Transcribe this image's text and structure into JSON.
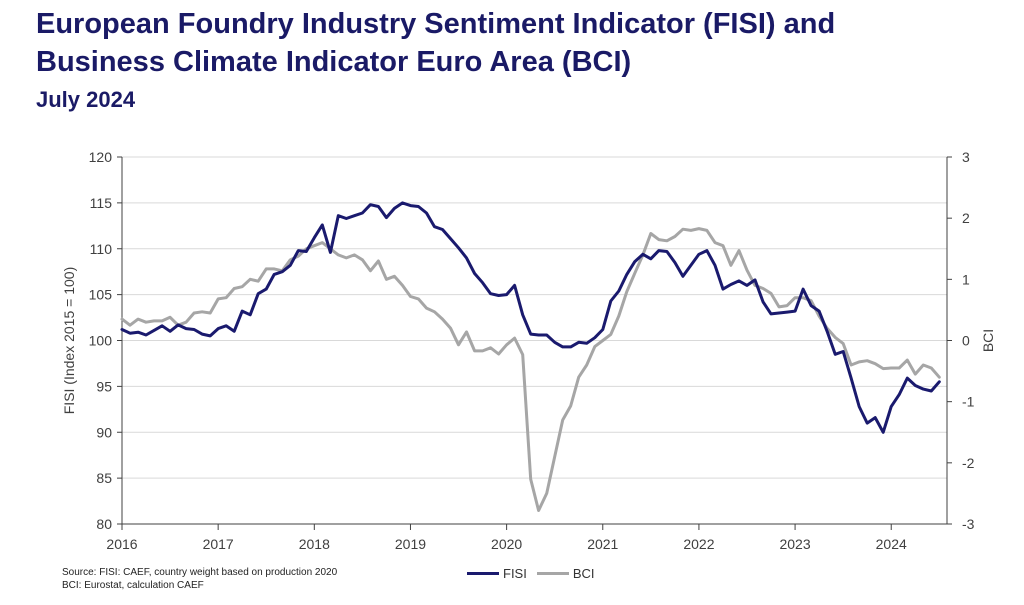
{
  "title_line1": "European Foundry Industry Sentiment Indicator (FISI) and",
  "title_line2": "Business Climate Indicator Euro Area (BCI)",
  "subtitle": "July 2024",
  "source_line1": "Source: FISI: CAEF, country weight based on production 2020",
  "source_line2": "BCI: Eurostat, calculation CAEF",
  "colors": {
    "fisi": "#1a1a6e",
    "bci": "#a6a6a6",
    "axis": "#404040",
    "grid": "#d9d9d9"
  },
  "chart_data": {
    "type": "line",
    "xlim": [
      2016,
      2024.58
    ],
    "x_ticks": [
      "2016",
      "2017",
      "2018",
      "2019",
      "2020",
      "2021",
      "2022",
      "2023",
      "2024"
    ],
    "left_axis": {
      "label": "FISI (Index 2015 = 100)",
      "ylim": [
        80,
        120
      ],
      "ticks": [
        "80",
        "85",
        "90",
        "95",
        "100",
        "105",
        "110",
        "115",
        "120"
      ]
    },
    "right_axis": {
      "label": "BCI",
      "ylim": [
        -3,
        3
      ],
      "ticks": [
        "-3",
        "-2",
        "-1",
        "0",
        "1",
        "2",
        "3"
      ]
    },
    "grid": true,
    "legend_position": "bottom",
    "series": [
      {
        "name": "FISI",
        "axis": "left",
        "x": [
          2016.0,
          2016.083,
          2016.167,
          2016.25,
          2016.333,
          2016.417,
          2016.5,
          2016.583,
          2016.667,
          2016.75,
          2016.833,
          2016.917,
          2017.0,
          2017.083,
          2017.167,
          2017.25,
          2017.333,
          2017.417,
          2017.5,
          2017.583,
          2017.667,
          2017.75,
          2017.833,
          2017.917,
          2018.0,
          2018.083,
          2018.167,
          2018.25,
          2018.333,
          2018.417,
          2018.5,
          2018.583,
          2018.667,
          2018.75,
          2018.833,
          2018.917,
          2019.0,
          2019.083,
          2019.167,
          2019.25,
          2019.333,
          2019.417,
          2019.5,
          2019.583,
          2019.667,
          2019.75,
          2019.833,
          2019.917,
          2020.0,
          2020.083,
          2020.167,
          2020.25,
          2020.333,
          2020.417,
          2020.5,
          2020.583,
          2020.667,
          2020.75,
          2020.833,
          2020.917,
          2021.0,
          2021.083,
          2021.167,
          2021.25,
          2021.333,
          2021.417,
          2021.5,
          2021.583,
          2021.667,
          2021.75,
          2021.833,
          2021.917,
          2022.0,
          2022.083,
          2022.167,
          2022.25,
          2022.333,
          2022.417,
          2022.5,
          2022.583,
          2022.667,
          2022.75,
          2022.833,
          2022.917,
          2023.0,
          2023.083,
          2023.167,
          2023.25,
          2023.333,
          2023.417,
          2023.5,
          2023.583,
          2023.667,
          2023.75,
          2023.833,
          2023.917,
          2024.0,
          2024.083,
          2024.167,
          2024.25,
          2024.333,
          2024.417,
          2024.5
        ],
        "values": [
          101.2,
          100.8,
          100.9,
          100.6,
          101.1,
          101.6,
          101.0,
          101.7,
          101.3,
          101.2,
          100.7,
          100.5,
          101.3,
          101.6,
          101.0,
          103.2,
          102.8,
          105.1,
          105.6,
          107.2,
          107.5,
          108.2,
          109.8,
          109.7,
          111.2,
          112.6,
          109.6,
          113.6,
          113.3,
          113.6,
          113.9,
          114.8,
          114.6,
          113.4,
          114.4,
          115.0,
          114.7,
          114.6,
          113.9,
          112.4,
          112.1,
          111.1,
          110.1,
          109.0,
          107.3,
          106.3,
          105.1,
          104.9,
          105.0,
          106.0,
          102.8,
          100.7,
          100.6,
          100.6,
          99.8,
          99.3,
          99.3,
          99.8,
          99.7,
          100.3,
          101.2,
          104.3,
          105.4,
          107.2,
          108.6,
          109.4,
          108.9,
          109.8,
          109.7,
          108.5,
          107.0,
          108.2,
          109.4,
          109.8,
          108.2,
          105.6,
          106.1,
          106.5,
          106.0,
          106.6,
          104.2,
          102.9,
          103.0,
          103.1,
          103.2,
          105.6,
          103.8,
          103.2,
          101.0,
          98.5,
          98.8,
          95.9,
          92.8,
          91.0,
          91.6,
          90.0,
          92.8,
          94.1,
          95.9,
          95.1,
          94.7,
          94.5,
          95.5
        ]
      },
      {
        "name": "BCI",
        "axis": "right",
        "x": [
          2016.0,
          2016.083,
          2016.167,
          2016.25,
          2016.333,
          2016.417,
          2016.5,
          2016.583,
          2016.667,
          2016.75,
          2016.833,
          2016.917,
          2017.0,
          2017.083,
          2017.167,
          2017.25,
          2017.333,
          2017.417,
          2017.5,
          2017.583,
          2017.667,
          2017.75,
          2017.833,
          2017.917,
          2018.0,
          2018.083,
          2018.167,
          2018.25,
          2018.333,
          2018.417,
          2018.5,
          2018.583,
          2018.667,
          2018.75,
          2018.833,
          2018.917,
          2019.0,
          2019.083,
          2019.167,
          2019.25,
          2019.333,
          2019.417,
          2019.5,
          2019.583,
          2019.667,
          2019.75,
          2019.833,
          2019.917,
          2020.0,
          2020.083,
          2020.167,
          2020.25,
          2020.333,
          2020.417,
          2020.5,
          2020.583,
          2020.667,
          2020.75,
          2020.833,
          2020.917,
          2021.0,
          2021.083,
          2021.167,
          2021.25,
          2021.333,
          2021.417,
          2021.5,
          2021.583,
          2021.667,
          2021.75,
          2021.833,
          2021.917,
          2022.0,
          2022.083,
          2022.167,
          2022.25,
          2022.333,
          2022.417,
          2022.5,
          2022.583,
          2022.667,
          2022.75,
          2022.833,
          2022.917,
          2023.0,
          2023.083,
          2023.167,
          2023.25,
          2023.333,
          2023.417,
          2023.5,
          2023.583,
          2023.667,
          2023.75,
          2023.833,
          2023.917,
          2024.0,
          2024.083,
          2024.167,
          2024.25,
          2024.333,
          2024.417,
          2024.5
        ],
        "values": [
          0.35,
          0.25,
          0.35,
          0.3,
          0.32,
          0.32,
          0.38,
          0.25,
          0.3,
          0.45,
          0.47,
          0.45,
          0.68,
          0.7,
          0.85,
          0.88,
          1.0,
          0.97,
          1.17,
          1.17,
          1.14,
          1.32,
          1.38,
          1.5,
          1.55,
          1.6,
          1.5,
          1.4,
          1.35,
          1.4,
          1.32,
          1.14,
          1.3,
          1.0,
          1.05,
          0.9,
          0.72,
          0.68,
          0.53,
          0.47,
          0.35,
          0.2,
          -0.07,
          0.14,
          -0.17,
          -0.17,
          -0.12,
          -0.22,
          -0.07,
          0.04,
          -0.23,
          -2.27,
          -2.78,
          -2.5,
          -1.9,
          -1.3,
          -1.07,
          -0.6,
          -0.4,
          -0.1,
          0.0,
          0.1,
          0.4,
          0.8,
          1.1,
          1.4,
          1.75,
          1.65,
          1.63,
          1.7,
          1.82,
          1.8,
          1.83,
          1.8,
          1.6,
          1.55,
          1.23,
          1.47,
          1.15,
          0.9,
          0.85,
          0.77,
          0.55,
          0.57,
          0.7,
          0.7,
          0.65,
          0.4,
          0.2,
          0.05,
          -0.05,
          -0.4,
          -0.35,
          -0.33,
          -0.38,
          -0.46,
          -0.45,
          -0.45,
          -0.32,
          -0.55,
          -0.4,
          -0.45,
          -0.6
        ]
      }
    ]
  }
}
